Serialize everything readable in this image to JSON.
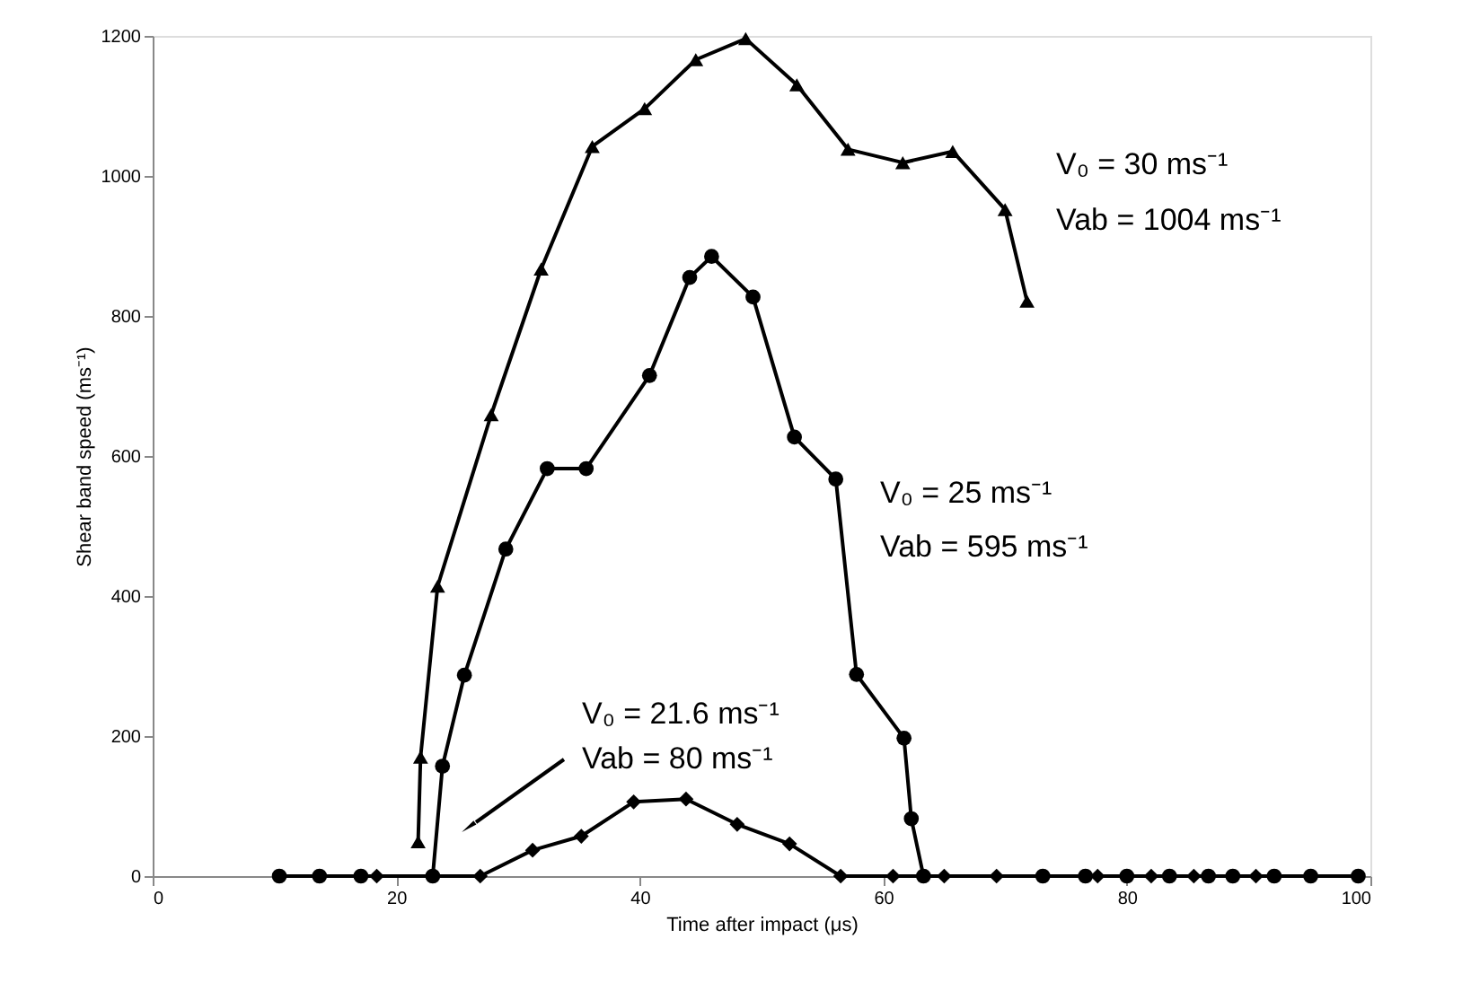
{
  "chart_data": {
    "type": "line",
    "xlabel": "Time after impact (μs)",
    "ylabel": "Shear band speed (ms⁻¹)",
    "xlim": [
      0,
      100
    ],
    "xticks": [
      0,
      20,
      40,
      60,
      80,
      100
    ],
    "ylim": [
      0,
      1200
    ],
    "yticks": [
      0,
      200,
      400,
      600,
      800,
      {
        "value": 1000,
        "label": "1000"
      },
      {
        "value": 1200,
        "label": "1200"
      }
    ],
    "grid": false,
    "legend": false,
    "line_style": "solid",
    "series": [
      {
        "color": "#000000",
        "marker": "triangle",
        "x": [
          21.8,
          22.0,
          23.4,
          27.8,
          31.9,
          36.1,
          40.4,
          44.6,
          48.7,
          52.9,
          57.1,
          61.6,
          65.7,
          70.0,
          71.8
        ],
        "values": [
          49,
          170,
          414,
          659,
          867,
          1042,
          1096,
          1166,
          1196,
          1130,
          1038,
          1019,
          1035,
          952,
          821
        ]
      },
      {
        "color": "#000000",
        "marker": "circle",
        "x": [
          10.4,
          13.7,
          17.1,
          23.0,
          23.8,
          25.6,
          29.0,
          32.4,
          35.6,
          40.8,
          44.1,
          45.9,
          49.3,
          52.7,
          56.1,
          57.8,
          61.7,
          62.3,
          63.3,
          73.1,
          76.6,
          80.0,
          83.5,
          86.7,
          88.7,
          92.1,
          95.1,
          99.0
        ],
        "values": [
          0,
          0,
          0,
          0,
          157,
          287,
          467,
          582,
          582,
          715,
          855,
          885,
          827,
          627,
          567,
          288,
          197,
          82,
          0,
          0,
          0,
          0,
          0,
          0,
          0,
          0,
          0,
          0
        ]
      },
      {
        "color": "#000000",
        "marker": "diamond",
        "x": [
          18.4,
          26.9,
          31.2,
          35.2,
          39.5,
          43.8,
          48.0,
          52.3,
          56.5,
          60.8,
          65.0,
          69.3,
          77.6,
          82.0,
          85.5,
          90.6
        ],
        "values": [
          0,
          0,
          37,
          57,
          106,
          110,
          74,
          46,
          0,
          0,
          0,
          0,
          0,
          0,
          0,
          0
        ]
      }
    ],
    "annotations": [
      "V₀ = 30 ms⁻¹",
      "Vab = 1004 ms⁻¹",
      "V₀ = 25 ms⁻¹",
      "Vab = 595 ms⁻¹",
      "V₀ = 21.6 ms⁻¹",
      "Vab = 80 ms⁻¹"
    ]
  }
}
